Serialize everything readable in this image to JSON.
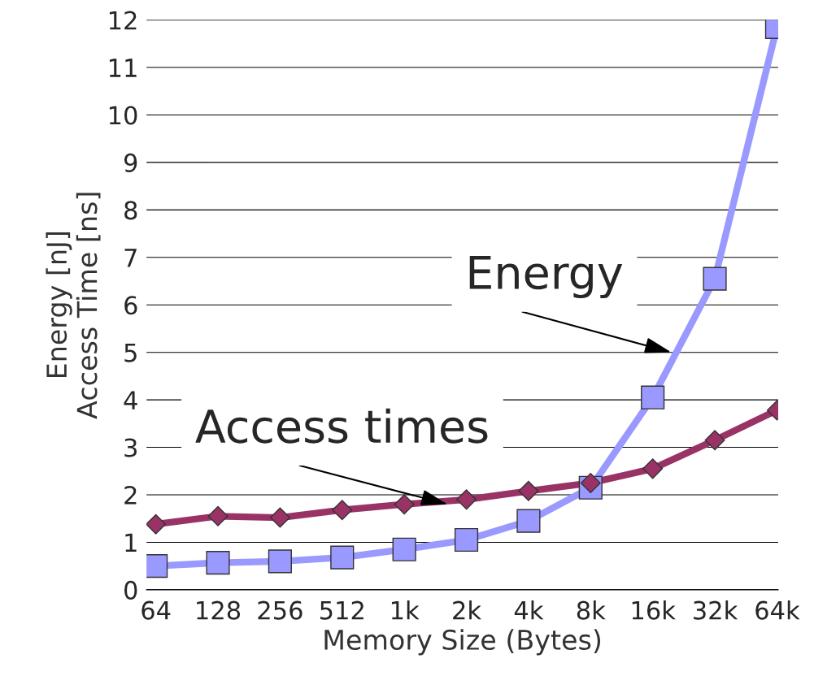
{
  "chart_data": {
    "type": "line",
    "xlabel": "Memory Size (Bytes)",
    "ylabel": "Energy [nJ]\nAccess Time [ns]",
    "categories": [
      "64",
      "128",
      "256",
      "512",
      "1k",
      "2k",
      "4k",
      "8k",
      "16k",
      "32k",
      "64k"
    ],
    "series": [
      {
        "name": "Energy",
        "color": "#9999ff",
        "marker": "square",
        "values": [
          0.5,
          0.57,
          0.6,
          0.68,
          0.85,
          1.05,
          1.45,
          2.15,
          4.05,
          6.55,
          11.85
        ]
      },
      {
        "name": "Access times",
        "color": "#993366",
        "marker": "diamond",
        "values": [
          1.38,
          1.55,
          1.52,
          1.68,
          1.8,
          1.9,
          2.08,
          2.25,
          2.55,
          3.15,
          3.78
        ]
      }
    ],
    "ylim": [
      0,
      12
    ],
    "yticks": [
      0,
      1,
      2,
      3,
      4,
      5,
      6,
      7,
      8,
      9,
      10,
      11,
      12
    ],
    "grid": "y",
    "legend": false
  }
}
